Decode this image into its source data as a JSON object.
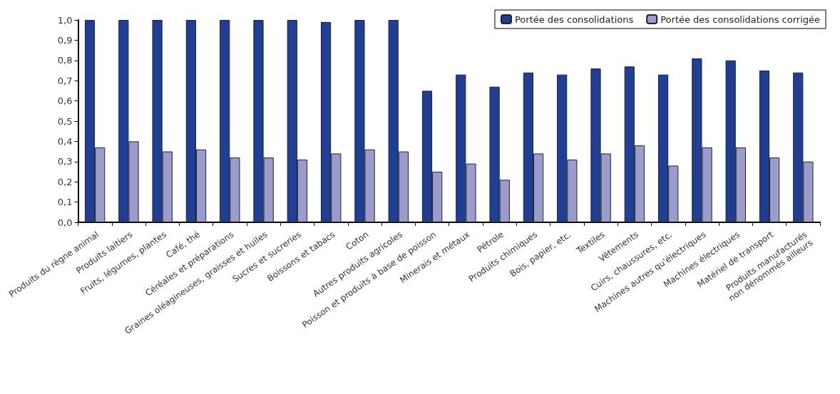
{
  "chart_data": {
    "type": "bar",
    "categories": [
      "Produits du règne animal",
      "Produits laitiers",
      "Fruits, légumes, plantes",
      "Café, thé",
      "Céréales et préparations",
      "Graines oléagineuses, graisses et huiles",
      "Sucres et sucreries",
      "Boissons et tabacs",
      "Coton",
      "Autres produits agricoles",
      "Poisson et produits à base de poisson",
      "Minerais et métaux",
      "Pétrole",
      "Produits chimiques",
      "Bois, papier, etc.",
      "Textiles",
      "Vêtements",
      "Cuirs, chaussures, etc.",
      "Machines autres qu'électriques",
      "Machines électriques",
      "Matériel de transport",
      "Produits manufacturés\nnon dénommés ailleurs"
    ],
    "series": [
      {
        "name": "Portée des consolidations",
        "color": "#1f3f96",
        "values": [
          1.0,
          1.0,
          1.0,
          1.0,
          1.0,
          1.0,
          1.0,
          0.99,
          1.0,
          1.0,
          0.65,
          0.73,
          0.67,
          0.74,
          0.73,
          0.76,
          0.77,
          0.73,
          0.81,
          0.8,
          0.75,
          0.74
        ]
      },
      {
        "name": "Portée des consolidations corrigée",
        "color": "#9a9ccd",
        "values": [
          0.37,
          0.4,
          0.35,
          0.36,
          0.32,
          0.32,
          0.31,
          0.34,
          0.36,
          0.35,
          0.25,
          0.29,
          0.21,
          0.34,
          0.31,
          0.34,
          0.38,
          0.28,
          0.37,
          0.37,
          0.32,
          0.3
        ]
      }
    ],
    "ylim": [
      0,
      1
    ],
    "yticks": [
      {
        "value": 0,
        "label": "0,0"
      },
      {
        "value": 0.1,
        "label": "0,1"
      },
      {
        "value": 0.2,
        "label": "0,2"
      },
      {
        "value": 0.3,
        "label": "0,3"
      },
      {
        "value": 0.4,
        "label": "0,4"
      },
      {
        "value": 0.5,
        "label": "0,5"
      },
      {
        "value": 0.6,
        "label": "0,6"
      },
      {
        "value": 0.7,
        "label": "0,7"
      },
      {
        "value": 0.8,
        "label": "0,8"
      },
      {
        "value": 0.9,
        "label": "0,9"
      },
      {
        "value": 1.0,
        "label": "1,0"
      }
    ],
    "grid": false,
    "legend": "top right"
  }
}
